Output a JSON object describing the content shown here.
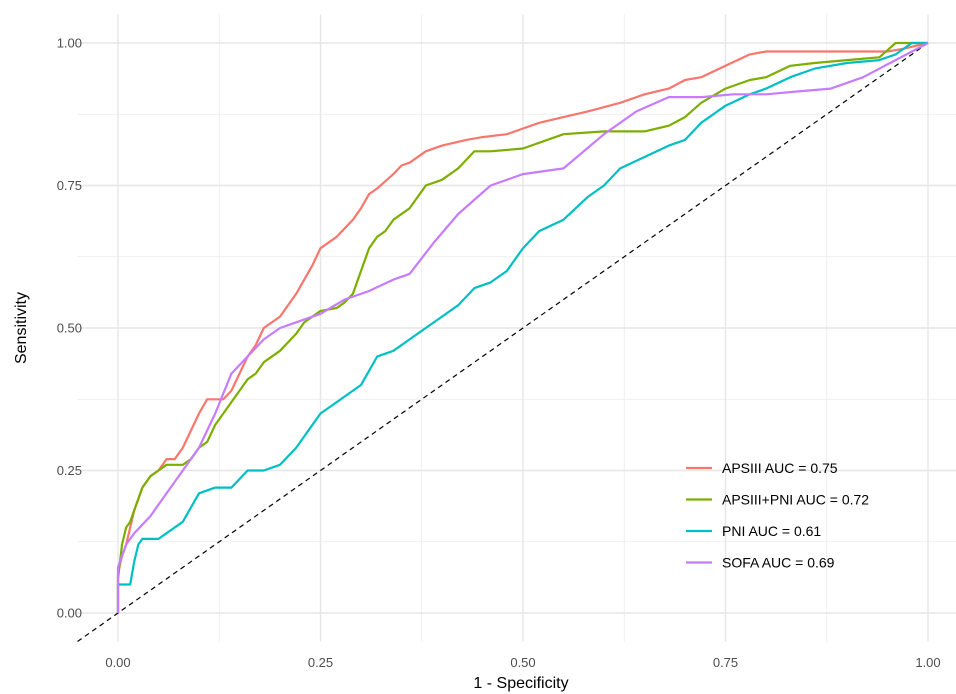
{
  "chart_data": {
    "type": "line",
    "xlabel": "1 - Specificity",
    "ylabel": "Sensitivity",
    "xlim": [
      -0.05,
      1.05
    ],
    "ylim": [
      -0.05,
      1.05
    ],
    "xticks": [
      0,
      0.25,
      0.5,
      0.75,
      1
    ],
    "xtick_labels": [
      "0.00",
      "0.25",
      "0.50",
      "0.75",
      "1.00"
    ],
    "yticks": [
      0,
      0.25,
      0.5,
      0.75,
      1
    ],
    "ytick_labels": [
      "0.00",
      "0.25",
      "0.50",
      "0.75",
      "1.00"
    ],
    "grid": true,
    "legend_position": "bottom-right",
    "reference_line": {
      "style": "dashed",
      "color": "#000000",
      "x": [
        -0.05,
        1.0
      ],
      "y": [
        -0.05,
        1.0
      ]
    },
    "series": [
      {
        "name": "APSIII AUC = 0.75",
        "color": "#F8766D",
        "x": [
          0,
          0,
          0.005,
          0.01,
          0.015,
          0.02,
          0.025,
          0.03,
          0.04,
          0.05,
          0.06,
          0.07,
          0.08,
          0.09,
          0.1,
          0.11,
          0.12,
          0.13,
          0.14,
          0.15,
          0.16,
          0.17,
          0.18,
          0.2,
          0.22,
          0.24,
          0.25,
          0.27,
          0.29,
          0.3,
          0.31,
          0.32,
          0.34,
          0.35,
          0.36,
          0.38,
          0.4,
          0.43,
          0.45,
          0.48,
          0.5,
          0.52,
          0.55,
          0.58,
          0.62,
          0.65,
          0.68,
          0.7,
          0.72,
          0.75,
          0.78,
          0.8,
          0.83,
          0.86,
          0.9,
          0.95,
          0.97,
          1.0
        ],
        "y": [
          0,
          0.07,
          0.1,
          0.12,
          0.15,
          0.18,
          0.2,
          0.22,
          0.24,
          0.25,
          0.27,
          0.27,
          0.29,
          0.32,
          0.35,
          0.375,
          0.375,
          0.375,
          0.39,
          0.42,
          0.45,
          0.47,
          0.5,
          0.52,
          0.56,
          0.61,
          0.64,
          0.66,
          0.69,
          0.71,
          0.735,
          0.745,
          0.77,
          0.785,
          0.79,
          0.81,
          0.82,
          0.83,
          0.835,
          0.84,
          0.85,
          0.86,
          0.87,
          0.88,
          0.895,
          0.91,
          0.92,
          0.935,
          0.94,
          0.96,
          0.98,
          0.985,
          0.985,
          0.985,
          0.985,
          0.985,
          0.99,
          1.0
        ]
      },
      {
        "name": "APSIII+PNI AUC = 0.72",
        "color": "#7CAE00",
        "x": [
          0,
          0,
          0.005,
          0.01,
          0.015,
          0.02,
          0.025,
          0.03,
          0.04,
          0.05,
          0.06,
          0.07,
          0.08,
          0.09,
          0.1,
          0.11,
          0.12,
          0.13,
          0.14,
          0.15,
          0.16,
          0.17,
          0.18,
          0.2,
          0.22,
          0.23,
          0.25,
          0.27,
          0.28,
          0.29,
          0.3,
          0.31,
          0.32,
          0.33,
          0.34,
          0.35,
          0.36,
          0.37,
          0.38,
          0.4,
          0.42,
          0.44,
          0.46,
          0.5,
          0.55,
          0.6,
          0.65,
          0.68,
          0.7,
          0.72,
          0.75,
          0.78,
          0.8,
          0.83,
          0.86,
          0.9,
          0.94,
          0.96,
          0.98,
          1.0
        ],
        "y": [
          0,
          0.06,
          0.12,
          0.15,
          0.16,
          0.18,
          0.2,
          0.22,
          0.24,
          0.25,
          0.26,
          0.26,
          0.26,
          0.27,
          0.29,
          0.3,
          0.33,
          0.35,
          0.37,
          0.39,
          0.41,
          0.42,
          0.44,
          0.46,
          0.49,
          0.51,
          0.53,
          0.535,
          0.545,
          0.56,
          0.6,
          0.64,
          0.66,
          0.67,
          0.69,
          0.7,
          0.71,
          0.73,
          0.75,
          0.76,
          0.78,
          0.81,
          0.81,
          0.815,
          0.84,
          0.845,
          0.845,
          0.855,
          0.87,
          0.895,
          0.92,
          0.935,
          0.94,
          0.96,
          0.965,
          0.97,
          0.975,
          1.0,
          1.0,
          1.0
        ]
      },
      {
        "name": "PNI AUC = 0.61",
        "color": "#00BFC4",
        "x": [
          0,
          0,
          0.005,
          0.01,
          0.015,
          0.02,
          0.025,
          0.03,
          0.05,
          0.06,
          0.08,
          0.1,
          0.12,
          0.14,
          0.16,
          0.18,
          0.2,
          0.22,
          0.24,
          0.25,
          0.27,
          0.3,
          0.32,
          0.34,
          0.36,
          0.38,
          0.4,
          0.42,
          0.44,
          0.46,
          0.48,
          0.5,
          0.52,
          0.55,
          0.58,
          0.6,
          0.62,
          0.65,
          0.68,
          0.7,
          0.72,
          0.75,
          0.78,
          0.8,
          0.83,
          0.86,
          0.9,
          0.94,
          0.96,
          0.98,
          1.0
        ],
        "y": [
          0,
          0.05,
          0.05,
          0.05,
          0.05,
          0.09,
          0.12,
          0.13,
          0.13,
          0.14,
          0.16,
          0.21,
          0.22,
          0.22,
          0.25,
          0.25,
          0.26,
          0.29,
          0.33,
          0.35,
          0.37,
          0.4,
          0.45,
          0.46,
          0.48,
          0.5,
          0.52,
          0.54,
          0.57,
          0.58,
          0.6,
          0.64,
          0.67,
          0.69,
          0.73,
          0.75,
          0.78,
          0.8,
          0.82,
          0.83,
          0.86,
          0.89,
          0.91,
          0.92,
          0.94,
          0.955,
          0.965,
          0.97,
          0.98,
          1.0,
          1.0
        ]
      },
      {
        "name": "SOFA AUC = 0.69",
        "color": "#C77CFF",
        "x": [
          0,
          0,
          0.005,
          0.01,
          0.02,
          0.04,
          0.06,
          0.08,
          0.1,
          0.12,
          0.14,
          0.16,
          0.18,
          0.2,
          0.22,
          0.25,
          0.28,
          0.31,
          0.34,
          0.36,
          0.39,
          0.42,
          0.46,
          0.5,
          0.55,
          0.6,
          0.64,
          0.68,
          0.72,
          0.76,
          0.8,
          0.84,
          0.88,
          0.92,
          0.96,
          1.0
        ],
        "y": [
          0,
          0.08,
          0.1,
          0.12,
          0.14,
          0.17,
          0.21,
          0.25,
          0.29,
          0.35,
          0.42,
          0.45,
          0.48,
          0.5,
          0.51,
          0.525,
          0.55,
          0.565,
          0.585,
          0.595,
          0.65,
          0.7,
          0.75,
          0.77,
          0.78,
          0.84,
          0.88,
          0.905,
          0.905,
          0.91,
          0.91,
          0.915,
          0.92,
          0.94,
          0.97,
          1.0
        ]
      }
    ]
  }
}
